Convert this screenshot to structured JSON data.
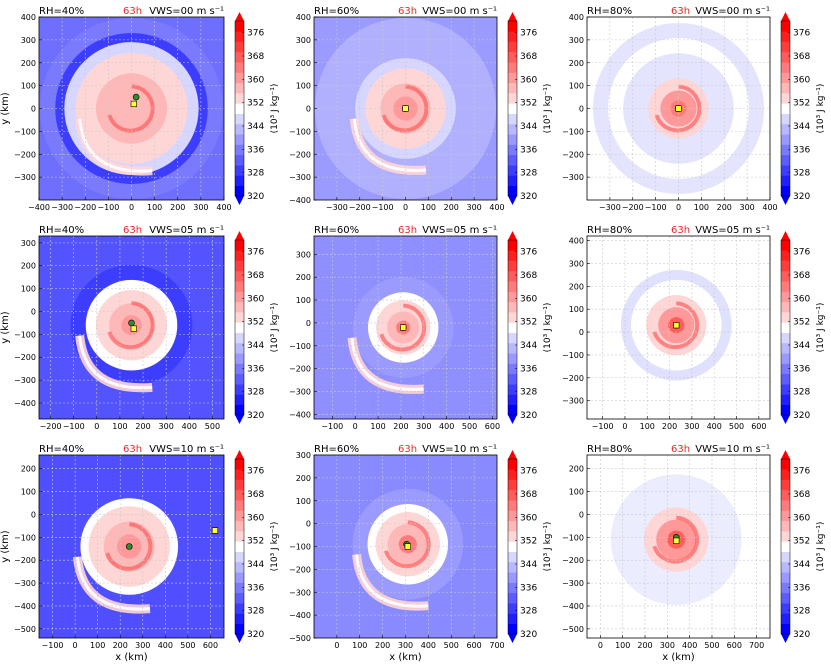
{
  "colors": {
    "red_label": "#e8282a",
    "colormap": [
      "#0000ff",
      "#1f1fff",
      "#3d3dff",
      "#5c5cff",
      "#7a7aff",
      "#9999ff",
      "#b8b8ff",
      "#d6d6ff",
      "#ffffff",
      "#ffd6d6",
      "#ffb8b8",
      "#ff9999",
      "#ff7a7a",
      "#ff5c5c",
      "#ff3d3d",
      "#ff1f1f",
      "#ff0000"
    ],
    "grid": "#c9c9c9",
    "center_green": "#2e8b2e",
    "center_yellow": "#ffff33"
  },
  "colorbar": {
    "ticks": [
      "376",
      "368",
      "360",
      "352",
      "344",
      "336",
      "328",
      "320"
    ],
    "label": "(10³ J kg⁻¹)",
    "range": [
      320,
      380
    ]
  },
  "common": {
    "time": "63h",
    "xlabel": "x (km)",
    "ylabel": "y (km)"
  },
  "chart_data": [
    {
      "type": "heatmap",
      "rh": "RH=40%",
      "vws": "VWS=00 m s⁻¹",
      "xlim": [
        -400,
        400
      ],
      "ylim": [
        -400,
        400
      ],
      "xticks": [
        "−400",
        "−300",
        "−200",
        "−100",
        "0",
        "100",
        "200",
        "300",
        "400"
      ],
      "yticks": [
        "400",
        "300",
        "200",
        "100",
        "0",
        "−100",
        "−200",
        "−300"
      ],
      "center": [
        0,
        0
      ],
      "env": "#6f6fff",
      "field": [
        {
          "r": 0.9,
          "c": "#7a7aff"
        },
        {
          "r": 0.75,
          "c": "#3d3dff"
        },
        {
          "r": 0.66,
          "c": "#d6d6ff"
        },
        {
          "r": 0.55,
          "c": "#ffd6d6"
        },
        {
          "r": 0.35,
          "c": "#ffb8b8"
        }
      ],
      "storm": [
        [
          20,
          50
        ],
        [
          10,
          20
        ]
      ],
      "tail": true
    },
    {
      "type": "heatmap",
      "rh": "RH=60%",
      "vws": "VWS=00 m s⁻¹",
      "xlim": [
        -400,
        400
      ],
      "ylim": [
        -400,
        400
      ],
      "xticks": [
        "−300",
        "−200",
        "−100",
        "0",
        "100",
        "200",
        "300",
        "400"
      ],
      "yticks": [
        "400",
        "300",
        "200",
        "100",
        "0",
        "−100",
        "−200",
        "−300",
        "−400"
      ],
      "center": [
        0,
        0
      ],
      "env": "#9b9bff",
      "field": [
        {
          "r": 0.9,
          "c": "#b0b0ff"
        },
        {
          "r": 0.5,
          "c": "#d6d6ff"
        },
        {
          "r": 0.4,
          "c": "#ffd6d6"
        },
        {
          "r": 0.25,
          "c": "#ffb8b8"
        },
        {
          "r": 0.12,
          "c": "#ff9999"
        }
      ],
      "storm": [
        [
          0,
          0
        ],
        [
          0,
          0
        ]
      ],
      "tail": true
    },
    {
      "type": "heatmap",
      "rh": "RH=80%",
      "vws": "VWS=00 m s⁻¹",
      "xlim": [
        -400,
        400
      ],
      "ylim": [
        -400,
        400
      ],
      "xticks": [
        "−300",
        "−200",
        "−100",
        "0",
        "100",
        "200",
        "300",
        "400"
      ],
      "yticks": [
        "400",
        "300",
        "200",
        "100",
        "0",
        "−100",
        "−200",
        "−300"
      ],
      "center": [
        0,
        0
      ],
      "env": "#ffffff",
      "field": [
        {
          "r": 0.85,
          "c": "#e4e4ff"
        },
        {
          "r": 0.7,
          "c": "#ffffff"
        },
        {
          "r": 0.55,
          "c": "#e4e4ff"
        },
        {
          "r": 0.3,
          "c": "#ffd6d6"
        },
        {
          "r": 0.18,
          "c": "#ff9999"
        },
        {
          "r": 0.08,
          "c": "#ff7a7a"
        }
      ],
      "storm": [
        [
          0,
          0
        ],
        [
          0,
          0
        ]
      ],
      "tail": false
    },
    {
      "type": "heatmap",
      "rh": "RH=40%",
      "vws": "VWS=05 m s⁻¹",
      "xlim": [
        -250,
        550
      ],
      "ylim": [
        -470,
        330
      ],
      "xticks": [
        "−200",
        "−100",
        "0",
        "100",
        "200",
        "300",
        "400",
        "500"
      ],
      "yticks": [
        "300",
        "200",
        "100",
        "0",
        "−100",
        "−200",
        "−300",
        "−400"
      ],
      "center": [
        150,
        -60
      ],
      "env": "#5454ff",
      "field": [
        {
          "r": 0.6,
          "c": "#3d3dff"
        },
        {
          "r": 0.45,
          "c": "#ffffff"
        },
        {
          "r": 0.35,
          "c": "#ffd6d6"
        },
        {
          "r": 0.22,
          "c": "#ffb8b8"
        },
        {
          "r": 0.1,
          "c": "#ff9999"
        }
      ],
      "storm": [
        [
          150,
          -50
        ],
        [
          160,
          -75
        ]
      ],
      "tail": true
    },
    {
      "type": "heatmap",
      "rh": "RH=60%",
      "vws": "VWS=05 m s⁻¹",
      "xlim": [
        -180,
        620
      ],
      "ylim": [
        -420,
        380
      ],
      "xticks": [
        "−100",
        "0",
        "100",
        "200",
        "300",
        "400",
        "500",
        "600"
      ],
      "yticks": [
        "300",
        "200",
        "100",
        "0",
        "−100",
        "−200",
        "−300",
        "−400"
      ],
      "center": [
        210,
        -20
      ],
      "env": "#8f8fff",
      "field": [
        {
          "r": 0.5,
          "c": "#9b9bff"
        },
        {
          "r": 0.35,
          "c": "#ffffff"
        },
        {
          "r": 0.27,
          "c": "#ffd6d6"
        },
        {
          "r": 0.16,
          "c": "#ffb8b8"
        },
        {
          "r": 0.07,
          "c": "#ff7a7a"
        }
      ],
      "storm": [
        [
          210,
          -20
        ],
        [
          210,
          -20
        ]
      ],
      "tail": true
    },
    {
      "type": "heatmap",
      "rh": "RH=80%",
      "vws": "VWS=05 m s⁻¹",
      "xlim": [
        -170,
        650
      ],
      "ylim": [
        -380,
        420
      ],
      "xticks": [
        "−100",
        "0",
        "100",
        "200",
        "300",
        "400",
        "500",
        "600"
      ],
      "yticks": [
        "400",
        "300",
        "200",
        "100",
        "0",
        "−100",
        "−200",
        "−300"
      ],
      "center": [
        230,
        30
      ],
      "env": "#ffffff",
      "field": [
        {
          "r": 0.55,
          "c": "#e0e0ff"
        },
        {
          "r": 0.45,
          "c": "#ffffff"
        },
        {
          "r": 0.3,
          "c": "#ffd6d6"
        },
        {
          "r": 0.18,
          "c": "#ff9999"
        },
        {
          "r": 0.08,
          "c": "#ff5c5c"
        }
      ],
      "storm": [
        [
          230,
          30
        ],
        [
          230,
          30
        ]
      ],
      "tail": false
    },
    {
      "type": "heatmap",
      "rh": "RH=40%",
      "vws": "VWS=10 m s⁻¹",
      "xlim": [
        -160,
        660
      ],
      "ylim": [
        -540,
        260
      ],
      "xticks": [
        "−100",
        "0",
        "100",
        "200",
        "300",
        "400",
        "500",
        "600"
      ],
      "yticks": [
        "200",
        "100",
        "0",
        "−100",
        "−200",
        "−300",
        "−400",
        "−500"
      ],
      "center": [
        240,
        -140
      ],
      "env": "#4f4fff",
      "field": [
        {
          "r": 0.48,
          "c": "#ffffff"
        },
        {
          "r": 0.4,
          "c": "#ffd6d6"
        },
        {
          "r": 0.25,
          "c": "#ffb8b8"
        },
        {
          "r": 0.12,
          "c": "#ff9999"
        }
      ],
      "storm": [
        [
          240,
          -140
        ],
        [
          620,
          -70
        ]
      ],
      "tail": true
    },
    {
      "type": "heatmap",
      "rh": "RH=60%",
      "vws": "VWS=10 m s⁻¹",
      "xlim": [
        -100,
        700
      ],
      "ylim": [
        -500,
        300
      ],
      "xticks": [
        "0",
        "100",
        "200",
        "300",
        "400",
        "500",
        "600",
        "700"
      ],
      "yticks": [
        "300",
        "200",
        "100",
        "0",
        "−100",
        "−200",
        "−300",
        "−400",
        "−500"
      ],
      "center": [
        310,
        -90
      ],
      "env": "#8a8aff",
      "field": [
        {
          "r": 0.55,
          "c": "#9b9bff"
        },
        {
          "r": 0.4,
          "c": "#ffffff"
        },
        {
          "r": 0.32,
          "c": "#ffd6d6"
        },
        {
          "r": 0.2,
          "c": "#ffb8b8"
        },
        {
          "r": 0.09,
          "c": "#ff7a7a"
        }
      ],
      "storm": [
        [
          305,
          -90
        ],
        [
          310,
          -100
        ]
      ],
      "tail": true
    },
    {
      "type": "heatmap",
      "rh": "RH=80%",
      "vws": "VWS=10 m s⁻¹",
      "xlim": [
        -60,
        760
      ],
      "ylim": [
        -540,
        260
      ],
      "xticks": [
        "0",
        "100",
        "200",
        "300",
        "400",
        "500",
        "600",
        "700"
      ],
      "yticks": [
        "200",
        "100",
        "0",
        "−100",
        "−200",
        "−300",
        "−400",
        "−500"
      ],
      "center": [
        340,
        -110
      ],
      "env": "#ffffff",
      "field": [
        {
          "r": 0.65,
          "c": "#ececff"
        },
        {
          "r": 0.32,
          "c": "#ffd6d6"
        },
        {
          "r": 0.2,
          "c": "#ff9999"
        },
        {
          "r": 0.09,
          "c": "#ff5c5c"
        }
      ],
      "storm": [
        [
          340,
          -100
        ],
        [
          340,
          -115
        ]
      ],
      "tail": false
    }
  ]
}
